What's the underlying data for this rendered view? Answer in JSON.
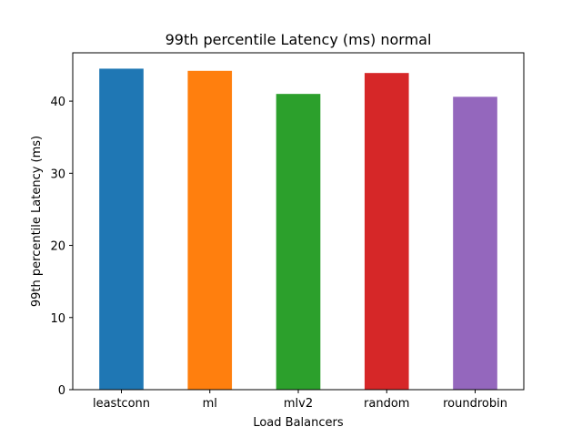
{
  "chart_data": {
    "type": "bar",
    "title": "99th percentile Latency (ms) normal",
    "xlabel": "Load Balancers",
    "ylabel": "99th percentile Latency (ms)",
    "categories": [
      "leastconn",
      "ml",
      "mlv2",
      "random",
      "roundrobin"
    ],
    "values": [
      44.5,
      44.2,
      41.0,
      43.9,
      40.6
    ],
    "colors": [
      "#1f77b4",
      "#ff7f0e",
      "#2ca02c",
      "#d62728",
      "#9467bd"
    ],
    "ylim": [
      0,
      46.7
    ],
    "yticks": [
      0,
      10,
      20,
      30,
      40
    ],
    "grid": false,
    "legend": false
  }
}
